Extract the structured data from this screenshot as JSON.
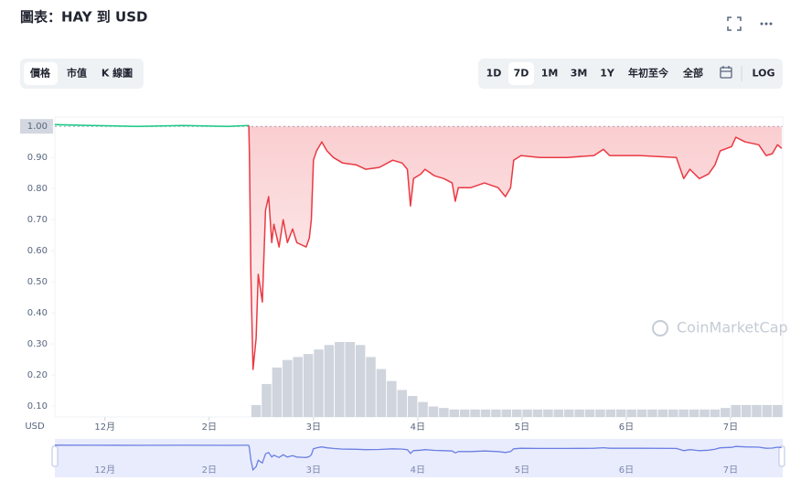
{
  "header": {
    "title": "圖表：HAY 到 USD"
  },
  "tabs": [
    "價格",
    "市值",
    "K 線圖"
  ],
  "ranges": [
    "1D",
    "7D",
    "1M",
    "3M",
    "1Y",
    "年初至今",
    "全部",
    "LOG"
  ],
  "watermark": "CoinMarketCap",
  "chart_data": {
    "type": "line",
    "y_unit": "USD",
    "x": [
      0.52,
      0.87,
      1.31,
      1.75,
      2.18,
      2.38,
      2.386,
      2.4,
      2.42,
      2.45,
      2.47,
      2.51,
      2.54,
      2.57,
      2.6,
      2.62,
      2.67,
      2.71,
      2.75,
      2.8,
      2.84,
      2.89,
      2.93,
      2.96,
      2.98,
      3.0,
      3.03,
      3.08,
      3.13,
      3.19,
      3.28,
      3.41,
      3.5,
      3.63,
      3.76,
      3.85,
      3.9,
      3.93,
      3.96,
      4.03,
      4.07,
      4.16,
      4.25,
      4.33,
      4.36,
      4.39,
      4.51,
      4.64,
      4.77,
      4.84,
      4.89,
      4.92,
      4.99,
      5.17,
      5.43,
      5.69,
      5.78,
      5.84,
      6.13,
      6.48,
      6.55,
      6.61,
      6.7,
      6.79,
      6.85,
      6.9,
      7.01,
      7.05,
      7.14,
      7.27,
      7.34,
      7.4,
      7.45,
      7.49
    ],
    "series": [
      {
        "color": "#16c784",
        "values": [
          1.006,
          1.003,
          1.0,
          1.003,
          1.0,
          1.003,
          null,
          null,
          null,
          null,
          null,
          null,
          null,
          null,
          null,
          null,
          null,
          null,
          null,
          null,
          null,
          null,
          null,
          null,
          null,
          null,
          null,
          null,
          null,
          null,
          null,
          null,
          null,
          null,
          null,
          null,
          null,
          null,
          null,
          null,
          null,
          null,
          null,
          null,
          null,
          null,
          null,
          null,
          null,
          null,
          null,
          null,
          null,
          null,
          null,
          null,
          null,
          null,
          null,
          null,
          null,
          null,
          null,
          null,
          null,
          null,
          null,
          null,
          null,
          null,
          null,
          null,
          null,
          null
        ]
      },
      {
        "color": "#ea3943",
        "values": [
          null,
          null,
          null,
          null,
          null,
          1.003,
          0.906,
          0.52,
          0.218,
          0.318,
          0.524,
          0.435,
          0.73,
          0.774,
          0.626,
          0.685,
          0.612,
          0.7,
          0.626,
          0.67,
          0.626,
          0.618,
          0.612,
          0.641,
          0.7,
          0.891,
          0.921,
          0.95,
          0.921,
          0.9,
          0.882,
          0.876,
          0.862,
          0.868,
          0.891,
          0.882,
          0.862,
          0.744,
          0.832,
          0.847,
          0.862,
          0.841,
          0.832,
          0.818,
          0.759,
          0.803,
          0.803,
          0.818,
          0.803,
          0.774,
          0.803,
          0.891,
          0.906,
          0.9,
          0.9,
          0.906,
          0.926,
          0.906,
          0.906,
          0.9,
          0.832,
          0.862,
          0.832,
          0.847,
          0.876,
          0.921,
          0.935,
          0.965,
          0.95,
          0.941,
          0.906,
          0.912,
          0.941,
          0.929
        ]
      }
    ],
    "baseline": 1.0,
    "volume": {
      "color": "#c3c9d4",
      "x": [
        2.45,
        2.55,
        2.65,
        2.75,
        2.85,
        2.95,
        3.05,
        3.15,
        3.25,
        3.35,
        3.45,
        3.55,
        3.65,
        3.75,
        3.85,
        3.95,
        4.05,
        4.15,
        4.25,
        4.35,
        4.45,
        4.55,
        4.65,
        4.75,
        4.85,
        4.95,
        5.05,
        5.15,
        5.25,
        5.35,
        5.45,
        5.55,
        5.65,
        5.75,
        5.85,
        5.95,
        6.05,
        6.15,
        6.25,
        6.35,
        6.45,
        6.55,
        6.65,
        6.75,
        6.85,
        6.95,
        7.05,
        7.15,
        7.25,
        7.35,
        7.45
      ],
      "values": [
        8,
        22,
        33,
        38,
        40,
        42,
        45,
        48,
        50,
        50,
        48,
        40,
        32,
        24,
        18,
        14,
        10,
        7,
        6,
        5,
        5,
        5,
        5,
        5,
        5,
        5,
        5,
        5,
        5,
        5,
        5,
        5,
        5,
        5,
        5,
        5,
        5,
        5,
        5,
        5,
        5,
        5,
        5,
        5,
        5,
        6,
        8,
        8,
        8,
        8,
        8
      ],
      "ylim": [
        0,
        60
      ]
    },
    "xlim": [
      0.52,
      7.5
    ],
    "xticks": [
      {
        "value": 1,
        "label": "12月"
      },
      {
        "value": 2,
        "label": "2日"
      },
      {
        "value": 3,
        "label": "3日"
      },
      {
        "value": 4,
        "label": "4日"
      },
      {
        "value": 5,
        "label": "5日"
      },
      {
        "value": 6,
        "label": "6日"
      },
      {
        "value": 7,
        "label": "7日"
      }
    ],
    "ylim": [
      0.065,
      1.03
    ],
    "yticks": [
      {
        "value": 1.0,
        "label": "1.00"
      },
      {
        "value": 0.9,
        "label": "0.90"
      },
      {
        "value": 0.8,
        "label": "0.80"
      },
      {
        "value": 0.7,
        "label": "0.70"
      },
      {
        "value": 0.6,
        "label": "0.60"
      },
      {
        "value": 0.5,
        "label": "0.50"
      },
      {
        "value": 0.4,
        "label": "0.40"
      },
      {
        "value": 0.3,
        "label": "0.30"
      },
      {
        "value": 0.2,
        "label": "0.20"
      },
      {
        "value": 0.1,
        "label": "0.10"
      }
    ],
    "navigator_color": "#6b7fe3"
  }
}
